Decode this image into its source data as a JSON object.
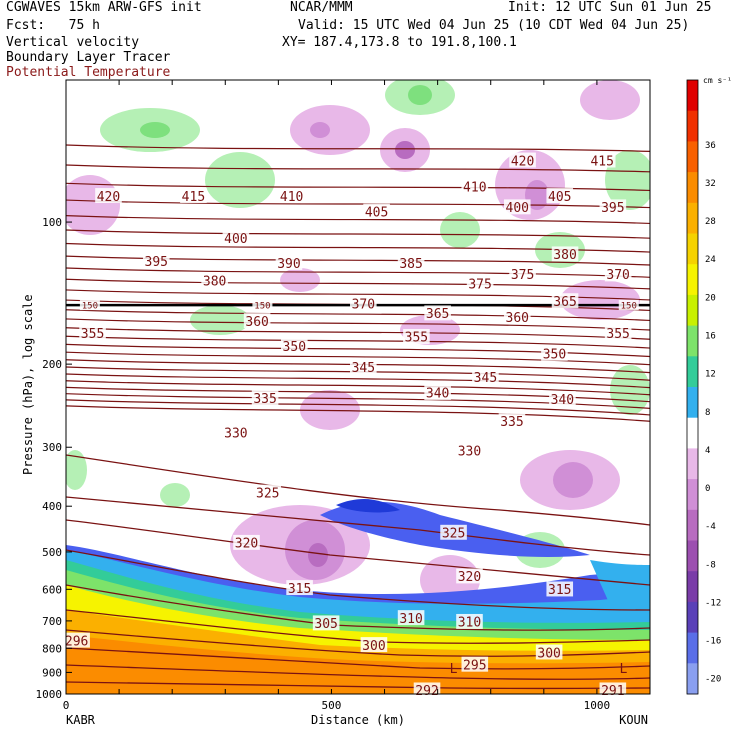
{
  "header": {
    "model": "CGWAVES 15km ARW-GFS init",
    "org": "NCAR/MMM",
    "init": "Init: 12 UTC Sun 01 Jun 25",
    "fcst": "Fcst:   75 h",
    "valid": "Valid: 15 UTC Wed 04 Jun 25 (10 CDT Wed 04 Jun 25)",
    "field1": "Vertical velocity",
    "xy": "XY= 187.4,173.8 to 191.8,100.1",
    "field2": "Boundary Layer Tracer",
    "field3": "Potential Temperature",
    "field3_color": "#8b1a1a"
  },
  "chart_data": {
    "type": "heatmap",
    "ylabel": "Pressure (hPa), log scale",
    "xlabel": "Distance (km)",
    "x_ticks": [
      0,
      500,
      1000
    ],
    "y_ticks": [
      100,
      200,
      300,
      400,
      500,
      600,
      700,
      800,
      900,
      1000
    ],
    "y_scale": "log",
    "xlim": [
      0,
      1100
    ],
    "ylim": [
      1000,
      50
    ],
    "left_station": "KABR",
    "right_station": "KOUN",
    "colorbar": {
      "unit": "cm s⁻¹",
      "ticks": [
        36,
        32,
        28,
        24,
        20,
        16,
        12,
        8,
        4,
        0,
        -4,
        -8,
        -12,
        -16,
        -20
      ],
      "colors": [
        "#e00000",
        "#f03000",
        "#f86000",
        "#fb8c00",
        "#fbb000",
        "#f5d200",
        "#f6f300",
        "#c8f000",
        "#7de36a",
        "#33cc99",
        "#33b0ee",
        "#ffffff",
        "#e8b8e8",
        "#d08fd6",
        "#b86cc0",
        "#9c4fb0",
        "#7a3ca8",
        "#5a40b8",
        "#5a6ee8",
        "#8a9ff0"
      ]
    },
    "theta_labels": [
      {
        "v": "420",
        "x": 80,
        "p": 88
      },
      {
        "v": "415",
        "x": 240,
        "p": 88
      },
      {
        "v": "410",
        "x": 425,
        "p": 88
      },
      {
        "v": "405",
        "x": 585,
        "p": 95
      },
      {
        "v": "420",
        "x": 860,
        "p": 74
      },
      {
        "v": "415",
        "x": 1010,
        "p": 74
      },
      {
        "v": "410",
        "x": 770,
        "p": 84
      },
      {
        "v": "400",
        "x": 850,
        "p": 93
      },
      {
        "v": "405",
        "x": 930,
        "p": 88
      },
      {
        "v": "395",
        "x": 1030,
        "p": 93
      },
      {
        "v": "400",
        "x": 320,
        "p": 108
      },
      {
        "v": "395",
        "x": 170,
        "p": 121
      },
      {
        "v": "390",
        "x": 420,
        "p": 122
      },
      {
        "v": "385",
        "x": 650,
        "p": 122
      },
      {
        "v": "380",
        "x": 280,
        "p": 133
      },
      {
        "v": "375",
        "x": 780,
        "p": 135
      },
      {
        "v": "375",
        "x": 860,
        "p": 129
      },
      {
        "v": "380",
        "x": 940,
        "p": 117
      },
      {
        "v": "370",
        "x": 1040,
        "p": 129
      },
      {
        "v": "370",
        "x": 560,
        "p": 149
      },
      {
        "v": "365",
        "x": 700,
        "p": 156
      },
      {
        "v": "365",
        "x": 940,
        "p": 147
      },
      {
        "v": "360",
        "x": 360,
        "p": 162
      },
      {
        "v": "360",
        "x": 850,
        "p": 159
      },
      {
        "v": "355",
        "x": 50,
        "p": 172
      },
      {
        "v": "355",
        "x": 660,
        "p": 175
      },
      {
        "v": "355",
        "x": 1040,
        "p": 172
      },
      {
        "v": "350",
        "x": 430,
        "p": 183
      },
      {
        "v": "350",
        "x": 920,
        "p": 190
      },
      {
        "v": "345",
        "x": 560,
        "p": 203
      },
      {
        "v": "345",
        "x": 790,
        "p": 213
      },
      {
        "v": "340",
        "x": 700,
        "p": 230
      },
      {
        "v": "340",
        "x": 935,
        "p": 237
      },
      {
        "v": "335",
        "x": 375,
        "p": 236
      },
      {
        "v": "335",
        "x": 840,
        "p": 264
      },
      {
        "v": "330",
        "x": 320,
        "p": 279
      },
      {
        "v": "330",
        "x": 760,
        "p": 305
      },
      {
        "v": "325",
        "x": 380,
        "p": 374
      },
      {
        "v": "325",
        "x": 730,
        "p": 455
      },
      {
        "v": "320",
        "x": 340,
        "p": 478
      },
      {
        "v": "320",
        "x": 760,
        "p": 563
      },
      {
        "v": "315",
        "x": 440,
        "p": 596
      },
      {
        "v": "315",
        "x": 930,
        "p": 600
      },
      {
        "v": "310",
        "x": 650,
        "p": 690
      },
      {
        "v": "310",
        "x": 760,
        "p": 703
      },
      {
        "v": "305",
        "x": 490,
        "p": 708
      },
      {
        "v": "300",
        "x": 580,
        "p": 787
      },
      {
        "v": "300",
        "x": 910,
        "p": 816
      },
      {
        "v": "296",
        "x": 20,
        "p": 770
      },
      {
        "v": "295",
        "x": 770,
        "p": 866
      },
      {
        "v": "292",
        "x": 680,
        "p": 982
      },
      {
        "v": "291",
        "x": 1030,
        "p": 982
      },
      {
        "v": "150",
        "x": 45,
        "p": 150
      },
      {
        "v": "150",
        "x": 370,
        "p": 150
      },
      {
        "v": "150",
        "x": 1060,
        "p": 150
      }
    ],
    "lows": [
      {
        "v": "L",
        "x": 730,
        "p": 880
      },
      {
        "v": "L",
        "x": 1050,
        "p": 880
      }
    ]
  }
}
